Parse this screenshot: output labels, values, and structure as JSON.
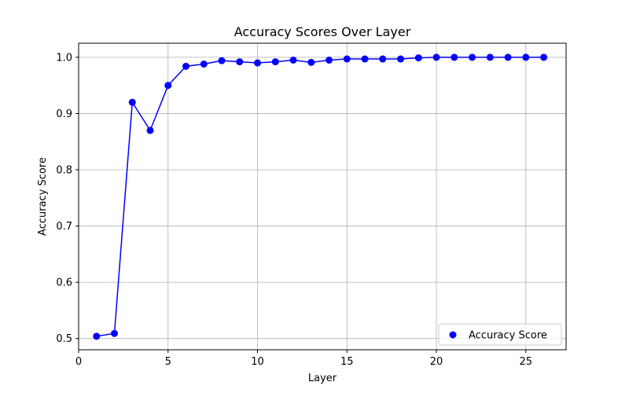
{
  "chart_data": {
    "type": "line",
    "title": "Accuracy Scores Over Layer",
    "xlabel": "Layer",
    "ylabel": "Accuracy Score",
    "xlim": [
      0,
      27.25
    ],
    "ylim": [
      0.48,
      1.025
    ],
    "xticks": [
      0,
      5,
      10,
      15,
      20,
      25
    ],
    "yticks": [
      0.5,
      0.6,
      0.7,
      0.8,
      0.9,
      1.0
    ],
    "xtick_labels": [
      "0",
      "5",
      "10",
      "15",
      "20",
      "25"
    ],
    "ytick_labels": [
      "0.5",
      "0.6",
      "0.7",
      "0.8",
      "0.9",
      "1.0"
    ],
    "grid": true,
    "legend_position": "lower-right",
    "series": [
      {
        "name": "Accuracy Score",
        "color": "#0000ff",
        "x": [
          1,
          2,
          3,
          4,
          5,
          6,
          7,
          8,
          9,
          10,
          11,
          12,
          13,
          14,
          15,
          16,
          17,
          18,
          19,
          20,
          21,
          22,
          23,
          24,
          25,
          26
        ],
        "y": [
          0.504,
          0.509,
          0.92,
          0.87,
          0.95,
          0.984,
          0.988,
          0.994,
          0.992,
          0.99,
          0.992,
          0.995,
          0.991,
          0.995,
          0.997,
          0.997,
          0.997,
          0.997,
          0.999,
          1.0,
          1.0,
          1.0,
          1.0,
          1.0,
          1.0,
          1.0
        ]
      }
    ]
  }
}
